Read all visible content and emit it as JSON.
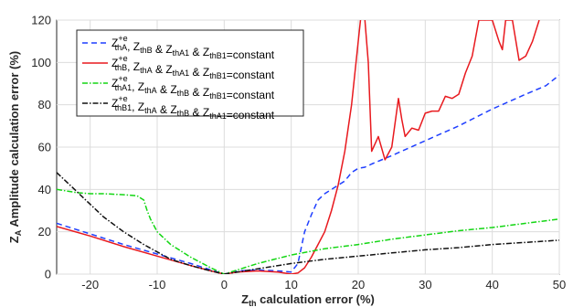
{
  "chart_data": {
    "type": "line",
    "xlabel_main": "Z",
    "xlabel_sub": "th",
    "xlabel_rest": " calculation error (%)",
    "ylabel_main": "Z",
    "ylabel_sub": "A",
    "ylabel_rest": " Amplitude calculation error (%)",
    "xlim": [
      -25,
      50
    ],
    "ylim": [
      0,
      120
    ],
    "xticks": [
      -20,
      -10,
      0,
      10,
      20,
      30,
      40,
      50
    ],
    "yticks": [
      0,
      20,
      40,
      60,
      80,
      100,
      120
    ],
    "grid": true,
    "legend_position": "top-left",
    "series": [
      {
        "name_parts": [
          [
            "Z",
            "+e",
            "thA"
          ],
          ", ",
          [
            "Z",
            "",
            "thB"
          ],
          " & ",
          [
            "Z",
            "",
            "thA1"
          ],
          " & ",
          [
            "Z",
            "",
            "thB1"
          ],
          "=constant"
        ],
        "color": "#1f3fff",
        "dash": "6,4",
        "x": [
          -25,
          -20,
          -15,
          -10,
          -5,
          -2,
          0,
          2,
          5,
          8,
          10,
          11,
          12,
          13,
          14,
          15,
          17,
          18,
          19,
          20,
          21,
          22,
          25,
          30,
          35,
          40,
          45,
          48,
          50
        ],
        "y": [
          24,
          19,
          14,
          9.5,
          5,
          2,
          0,
          1.5,
          2,
          1.5,
          1,
          5,
          20,
          28,
          35,
          38,
          42,
          44,
          48,
          50,
          50.5,
          52,
          56,
          63,
          70,
          78,
          85,
          89,
          94
        ]
      },
      {
        "name_parts": [
          [
            "Z",
            "+e",
            "thB"
          ],
          ", ",
          [
            "Z",
            "",
            "thA"
          ],
          " & ",
          [
            "Z",
            "",
            "thA1"
          ],
          " & ",
          [
            "Z",
            "",
            "thB1"
          ],
          "=constant"
        ],
        "color": "#e8191e",
        "dash": "",
        "x": [
          -25,
          -20,
          -15,
          -10,
          -5,
          -2,
          0,
          2,
          5,
          8,
          10,
          11,
          12,
          13,
          14,
          15,
          16,
          17,
          18,
          19,
          20,
          20.5,
          21,
          21.5,
          22,
          23,
          24,
          25,
          26,
          26.5,
          27,
          28,
          29,
          30,
          31,
          32,
          33,
          34,
          35,
          36,
          37,
          38,
          39,
          40,
          41,
          41.5,
          42,
          43,
          44,
          45,
          46,
          47
        ],
        "y": [
          22.5,
          18,
          13,
          8.5,
          4,
          1.5,
          0,
          1,
          1.5,
          1,
          0,
          0.5,
          3,
          8,
          14,
          20,
          30,
          42,
          58,
          80,
          110,
          125,
          120,
          100,
          58,
          65,
          54,
          60,
          83,
          73,
          65,
          69,
          68,
          76,
          77,
          77,
          84,
          83,
          85,
          95,
          103,
          120,
          120,
          120,
          110,
          106,
          120,
          120,
          101,
          103,
          110,
          120
        ]
      },
      {
        "name_parts": [
          [
            "Z",
            "+e",
            "thA1"
          ],
          ", ",
          [
            "Z",
            "",
            "thA"
          ],
          " & ",
          [
            "Z",
            "",
            "thB"
          ],
          " & ",
          [
            "Z",
            "",
            "thB1"
          ],
          "=constant"
        ],
        "color": "#13d613",
        "dash": "6,2,1.5,2",
        "x": [
          -25,
          -22,
          -20,
          -18,
          -15,
          -13,
          -12,
          -11.5,
          -11,
          -10,
          -8,
          -5,
          -2,
          0,
          5,
          10,
          15,
          20,
          25,
          30,
          35,
          40,
          45,
          50
        ],
        "y": [
          40,
          38.5,
          38,
          38,
          37.5,
          37,
          35,
          30,
          26,
          20,
          14,
          8,
          3,
          0,
          5,
          9,
          12,
          14,
          16.5,
          18.5,
          20.5,
          22,
          24,
          26
        ]
      },
      {
        "name_parts": [
          [
            "Z",
            "+e",
            "thB1"
          ],
          ", ",
          [
            "Z",
            "",
            "thA"
          ],
          " & ",
          [
            "Z",
            "",
            "thB"
          ],
          " & ",
          [
            "Z",
            "",
            "thA1"
          ],
          "=constant"
        ],
        "color": "#111111",
        "dash": "6,2,1.5,2",
        "x": [
          -25,
          -22,
          -20,
          -18,
          -15,
          -12,
          -10,
          -8,
          -5,
          -2,
          0,
          5,
          10,
          15,
          20,
          25,
          30,
          35,
          40,
          45,
          50
        ],
        "y": [
          48,
          39,
          33,
          27,
          20,
          14,
          10.5,
          7,
          4,
          1.5,
          0,
          2.5,
          5,
          7,
          8.5,
          10,
          11.5,
          12.5,
          14,
          15,
          16
        ]
      }
    ]
  }
}
